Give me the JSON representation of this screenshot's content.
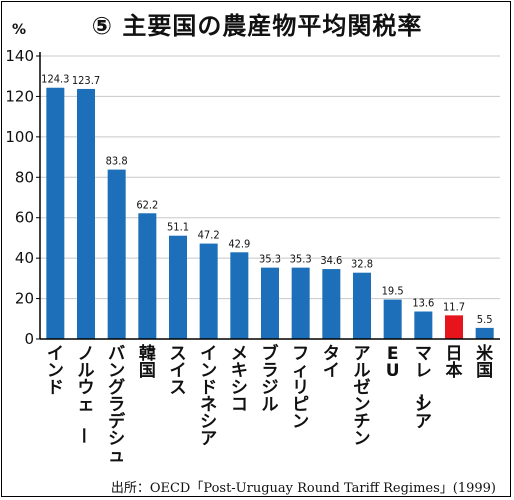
{
  "header": {
    "title": "⑤ 主要国の農産物平均関税率",
    "unit": "%",
    "source": "出所：OECD「Post-Uruguay Round Tariff Regimes」(1999)"
  },
  "colors": {
    "bar": "#1c6fb8",
    "highlight": "#e8141c",
    "axis": "#000000",
    "grid": "#c8c8c8"
  },
  "chart_data": {
    "type": "bar",
    "title": "⑤ 主要国の農産物平均関税率",
    "ylabel": "%",
    "xlabel": "",
    "ylim": [
      0,
      140
    ],
    "yticks": [
      0,
      20,
      40,
      60,
      80,
      100,
      120,
      140
    ],
    "grid": true,
    "categories": [
      "インド",
      "ノルウェー",
      "バングラデシュ",
      "韓国",
      "スイス",
      "インドネシア",
      "メキシコ",
      "ブラジル",
      "フィリピン",
      "タイ",
      "アルゼンチン",
      "EU",
      "マレーシア",
      "日本",
      "米国"
    ],
    "values": [
      124.3,
      123.7,
      83.8,
      62.2,
      51.1,
      47.2,
      42.9,
      35.3,
      35.3,
      34.6,
      32.8,
      19.5,
      13.6,
      11.7,
      5.5
    ],
    "value_labels": [
      "124.3",
      "123.7",
      "83.8",
      "62.2",
      "51.1",
      "47.2",
      "42.9",
      "35.3",
      "35.3",
      "34.6",
      "32.8",
      "19.5",
      "13.6",
      "11.7",
      "5.5"
    ],
    "highlight_category": "日本"
  }
}
